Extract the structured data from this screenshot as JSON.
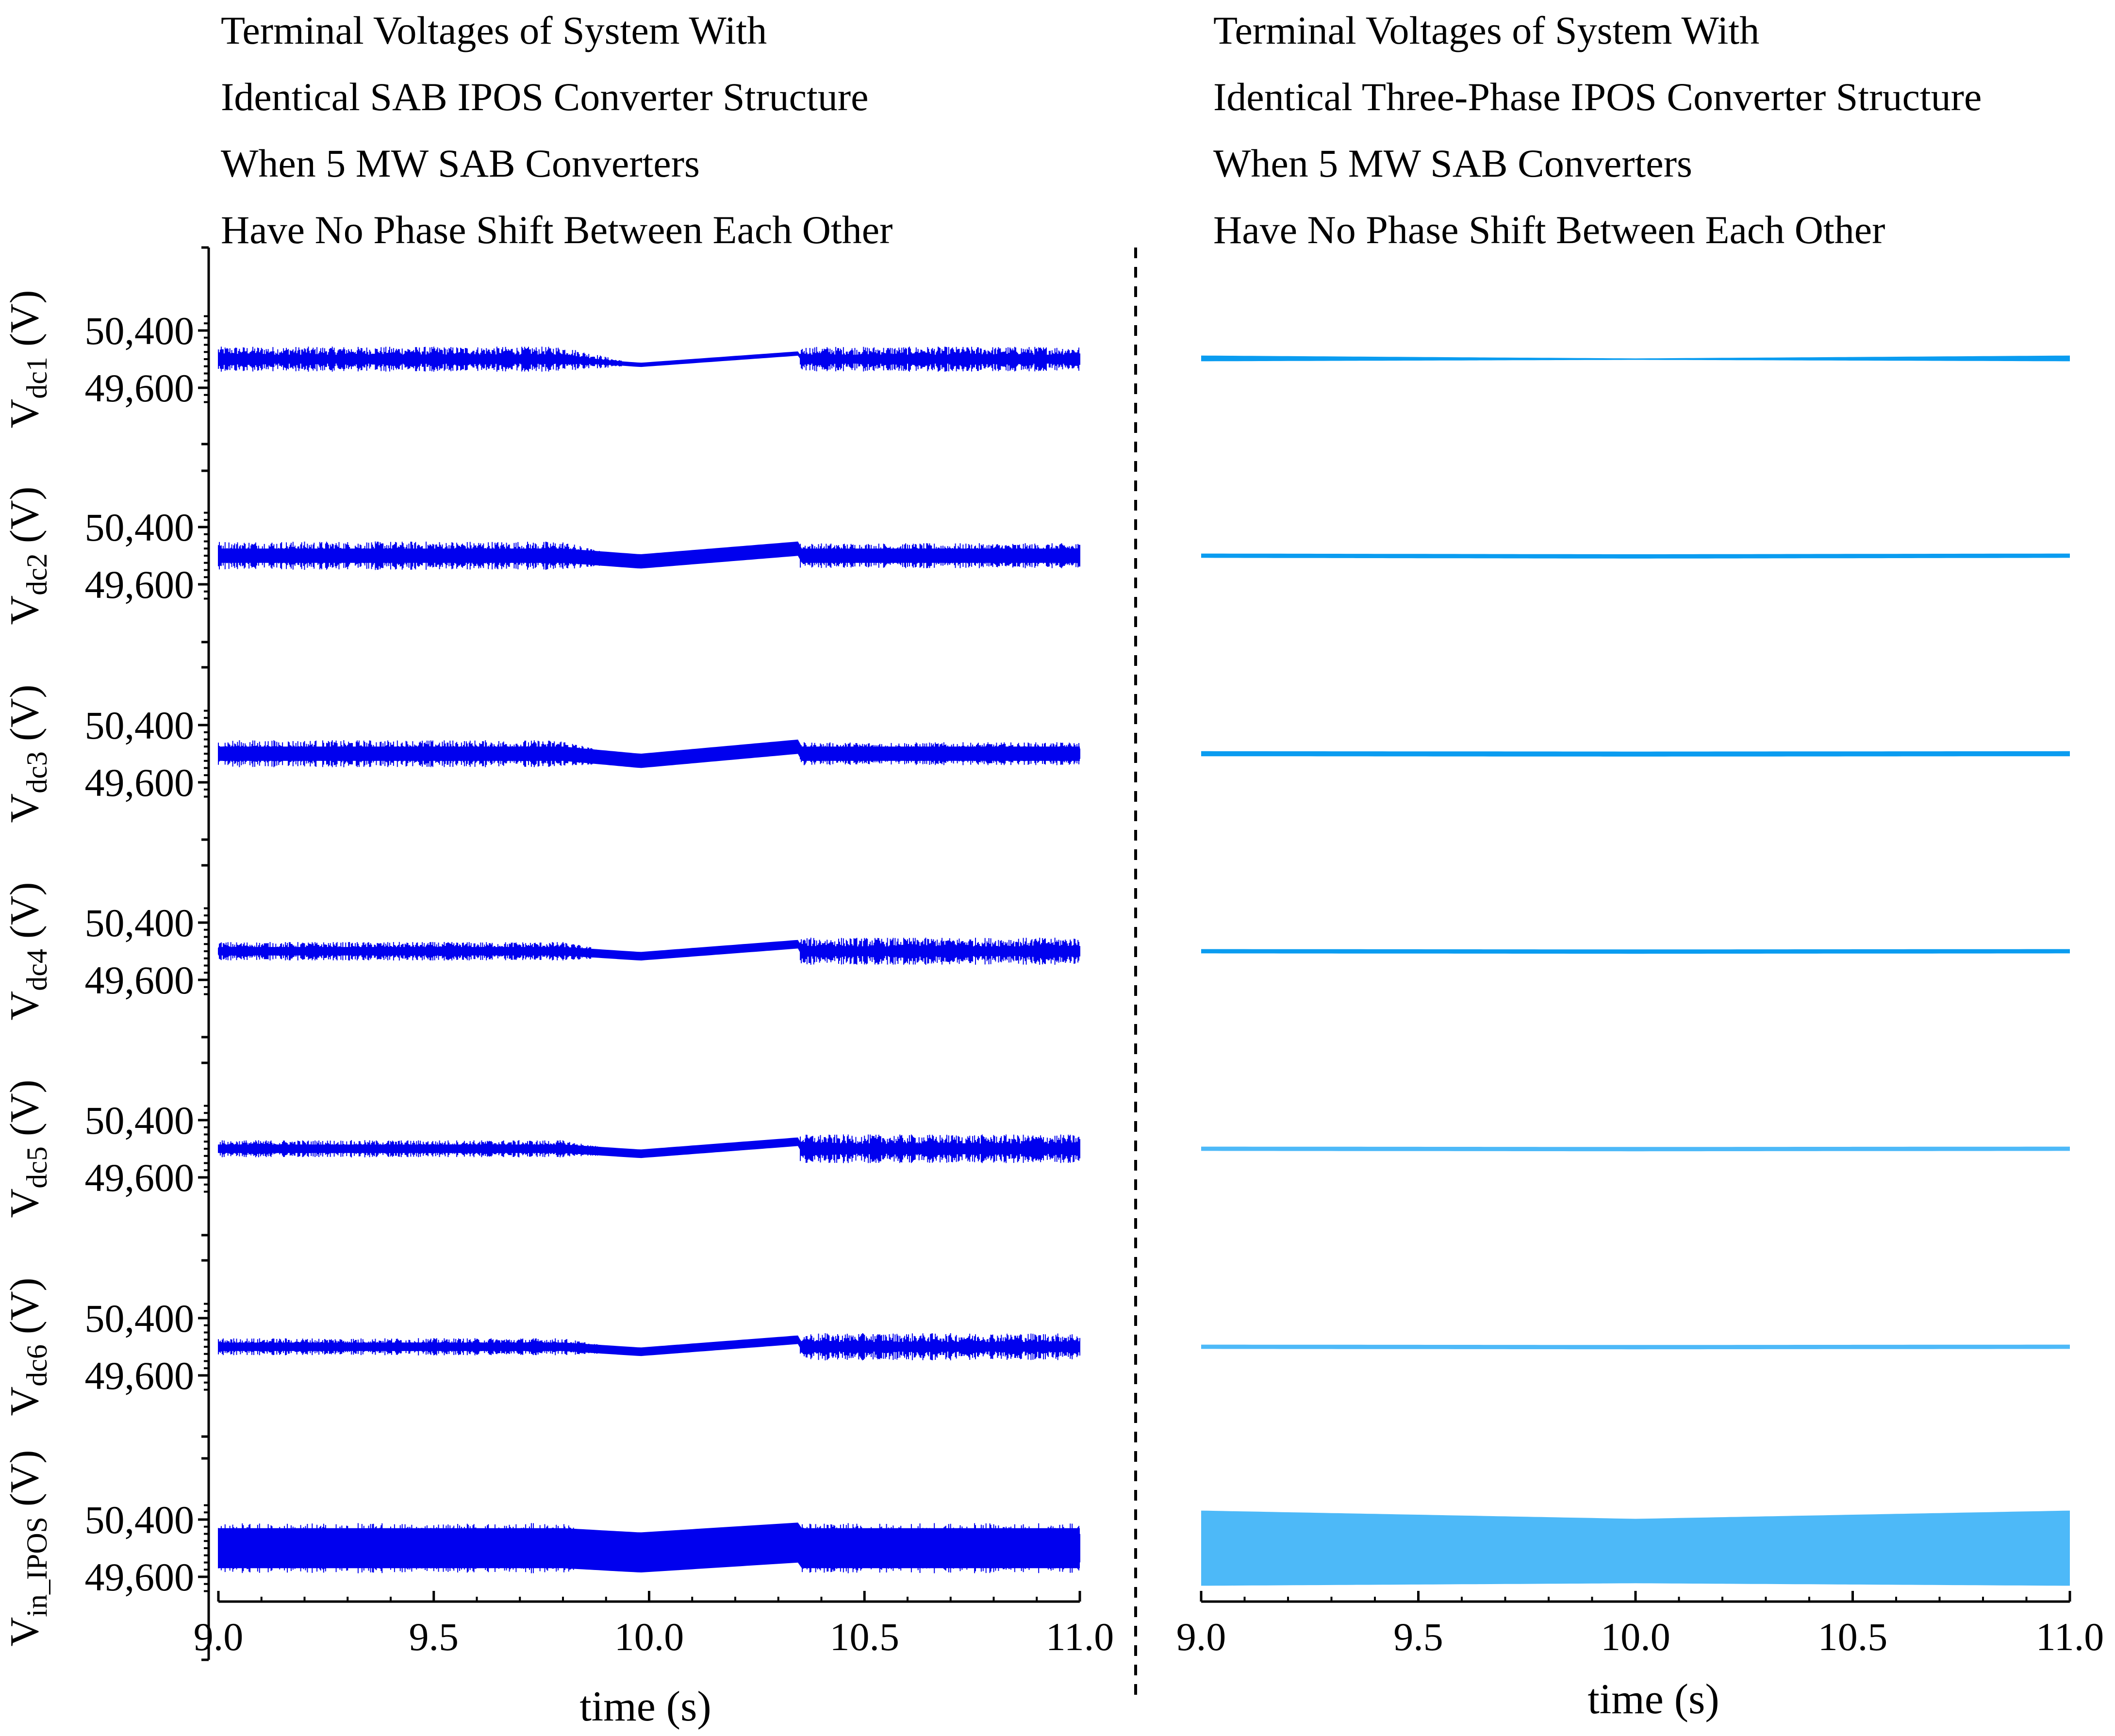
{
  "figure": {
    "colors": {
      "left_series": "#0000ee",
      "right_series_dark": "#0a9cf0",
      "right_series_light": "#4db9f8",
      "text": "#000000"
    },
    "divider": "dashed"
  },
  "chart_data": [
    {
      "panel": "left",
      "type": "line",
      "title_lines": [
        "Terminal Voltages of System With",
        "Identical SAB IPOS Converter Structure",
        "When 5 MW SAB Converters",
        "Have No Phase Shift Between Each Other"
      ],
      "xlabel": "time (s)",
      "xlim": [
        9.0,
        11.0
      ],
      "xticks": [
        "9.0",
        "9.5",
        "10.0",
        "10.5",
        "11.0"
      ],
      "ylim": [
        49400,
        50600
      ],
      "yticks": [
        "50,400",
        "49,600"
      ],
      "series": [
        {
          "name": "V_dc1",
          "label_main": "V",
          "label_sub": "dc1",
          "label_unit": " (V)",
          "t": [
            9.0,
            9.8,
            9.98,
            10.35,
            10.35,
            11.0
          ],
          "mean": [
            50000,
            50000,
            49920,
            50080,
            50000,
            50000
          ],
          "band_pp": [
            60,
            60,
            60,
            60,
            60,
            60
          ],
          "noise_pp": [
            350,
            350,
            0,
            0,
            350,
            350
          ]
        },
        {
          "name": "V_dc2",
          "label_main": "V",
          "label_sub": "dc2",
          "label_unit": " (V)",
          "t": [
            9.0,
            9.8,
            9.98,
            10.35,
            10.35,
            11.0
          ],
          "mean": [
            50000,
            50000,
            49920,
            50100,
            50000,
            50000
          ],
          "band_pp": [
            200,
            200,
            200,
            200,
            200,
            200
          ],
          "noise_pp": [
            400,
            400,
            0,
            0,
            350,
            350
          ]
        },
        {
          "name": "V_dc3",
          "label_main": "V",
          "label_sub": "dc3",
          "label_unit": " (V)",
          "t": [
            9.0,
            9.8,
            9.98,
            10.35,
            10.35,
            11.0
          ],
          "mean": [
            50000,
            50000,
            49900,
            50100,
            50000,
            50000
          ],
          "band_pp": [
            200,
            200,
            200,
            200,
            200,
            200
          ],
          "noise_pp": [
            380,
            380,
            0,
            0,
            320,
            320
          ]
        },
        {
          "name": "V_dc4",
          "label_main": "V",
          "label_sub": "dc4",
          "label_unit": " (V)",
          "t": [
            9.0,
            9.8,
            9.98,
            10.35,
            10.35,
            11.0
          ],
          "mean": [
            50000,
            50000,
            49930,
            50100,
            50000,
            50000
          ],
          "band_pp": [
            120,
            120,
            120,
            120,
            120,
            120
          ],
          "noise_pp": [
            260,
            260,
            0,
            0,
            380,
            380
          ]
        },
        {
          "name": "V_dc5",
          "label_main": "V",
          "label_sub": "dc5",
          "label_unit": " (V)",
          "t": [
            9.0,
            9.8,
            9.98,
            10.35,
            10.35,
            11.0
          ],
          "mean": [
            50000,
            50000,
            49930,
            50100,
            50000,
            50000
          ],
          "band_pp": [
            120,
            120,
            120,
            120,
            120,
            120
          ],
          "noise_pp": [
            240,
            240,
            0,
            0,
            400,
            400
          ]
        },
        {
          "name": "V_dc6",
          "label_main": "V",
          "label_sub": "dc6",
          "label_unit": " (V)",
          "t": [
            9.0,
            9.8,
            9.98,
            10.35,
            10.35,
            11.0
          ],
          "mean": [
            50000,
            50000,
            49930,
            50100,
            50000,
            50000
          ],
          "band_pp": [
            120,
            120,
            120,
            120,
            120,
            120
          ],
          "noise_pp": [
            240,
            240,
            0,
            0,
            380,
            380
          ]
        },
        {
          "name": "V_in_IPOS",
          "label_main": "V",
          "label_sub": "in_IPOS",
          "label_unit": " (V)",
          "t": [
            9.0,
            9.8,
            9.98,
            10.35,
            10.35,
            11.0
          ],
          "mean": [
            50000,
            50000,
            49940,
            50080,
            50000,
            50000
          ],
          "band_pp": [
            560,
            560,
            560,
            560,
            560,
            560
          ],
          "noise_pp": [
            700,
            700,
            0,
            0,
            700,
            700
          ]
        }
      ]
    },
    {
      "panel": "right",
      "type": "line",
      "title_lines": [
        "Terminal Voltages of System With",
        "Identical Three-Phase IPOS Converter Structure",
        "When 5 MW SAB Converters",
        "Have No Phase Shift Between Each Other"
      ],
      "xlabel": "time (s)",
      "xlim": [
        9.0,
        11.0
      ],
      "xticks": [
        "9.0",
        "9.5",
        "10.0",
        "10.5",
        "11.0"
      ],
      "ylim": [
        49400,
        50600
      ],
      "series": [
        {
          "name": "V_dc1",
          "t": [
            9.0,
            10.0,
            11.0
          ],
          "mean": [
            50010,
            50000,
            50010
          ],
          "band_pp": [
            80,
            20,
            80
          ]
        },
        {
          "name": "V_dc2",
          "t": [
            9.0,
            10.0,
            11.0
          ],
          "mean": [
            50000,
            49990,
            50000
          ],
          "band_pp": [
            60,
            60,
            60
          ]
        },
        {
          "name": "V_dc3",
          "t": [
            9.0,
            10.0,
            11.0
          ],
          "mean": [
            50000,
            49995,
            50000
          ],
          "band_pp": [
            70,
            70,
            70
          ]
        },
        {
          "name": "V_dc4",
          "t": [
            9.0,
            10.0,
            11.0
          ],
          "mean": [
            50000,
            49995,
            50000
          ],
          "band_pp": [
            60,
            60,
            60
          ]
        },
        {
          "name": "V_dc5",
          "t": [
            9.0,
            10.0,
            11.0
          ],
          "mean": [
            50000,
            49995,
            50000
          ],
          "band_pp": [
            60,
            60,
            60
          ]
        },
        {
          "name": "V_dc6",
          "t": [
            9.0,
            10.0,
            11.0
          ],
          "mean": [
            50000,
            49995,
            50000
          ],
          "band_pp": [
            60,
            60,
            60
          ]
        },
        {
          "name": "V_in_IPOS",
          "t": [
            9.0,
            10.0,
            11.0
          ],
          "mean": [
            50000,
            49960,
            50000
          ],
          "band_pp": [
            1050,
            900,
            1050
          ]
        }
      ]
    }
  ]
}
